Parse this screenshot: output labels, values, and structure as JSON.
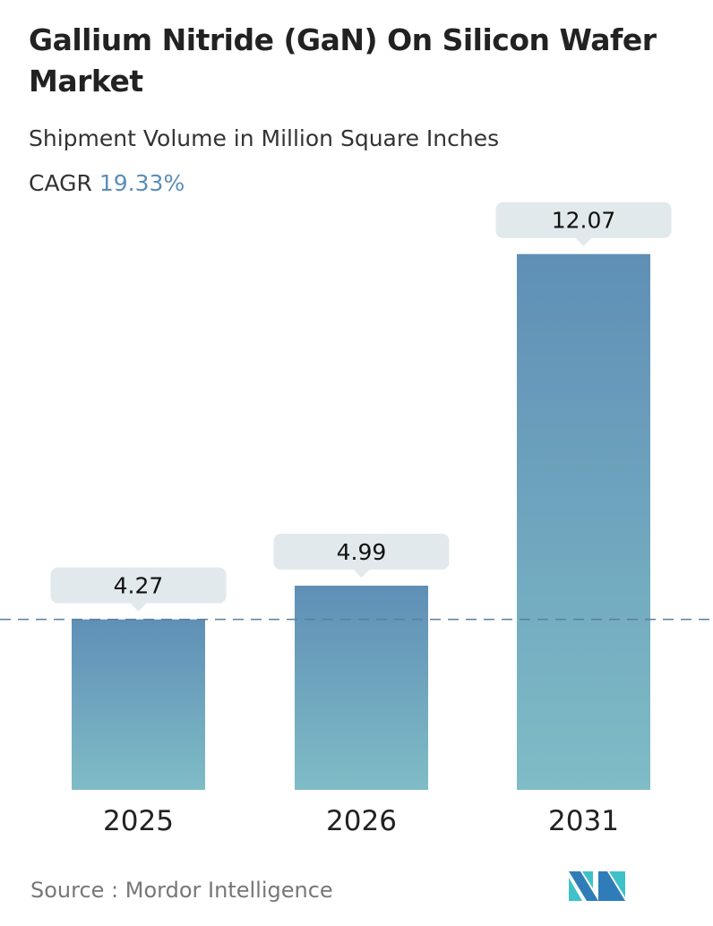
{
  "title": "Gallium Nitride (GaN) On Silicon Wafer Market",
  "subtitle": "Shipment Volume in Million Square Inches",
  "cagr_label": "CAGR",
  "cagr_value": "19.33%",
  "source": "Source :  Mordor Intelligence",
  "colors": {
    "bar_top": "#5f8fb6",
    "bar_bottom": "#7fbcc6",
    "label_bg": "#e1e9ec",
    "dash": "#5a7f9e",
    "accent": "#5b8db8"
  },
  "chart_data": {
    "type": "bar",
    "categories": [
      "2025",
      "2026",
      "2031"
    ],
    "values": [
      4.27,
      4.99,
      12.07
    ],
    "data_labels": [
      "4.27",
      "4.99",
      "12.07"
    ],
    "reference_line": 4.27,
    "grid": false
  }
}
